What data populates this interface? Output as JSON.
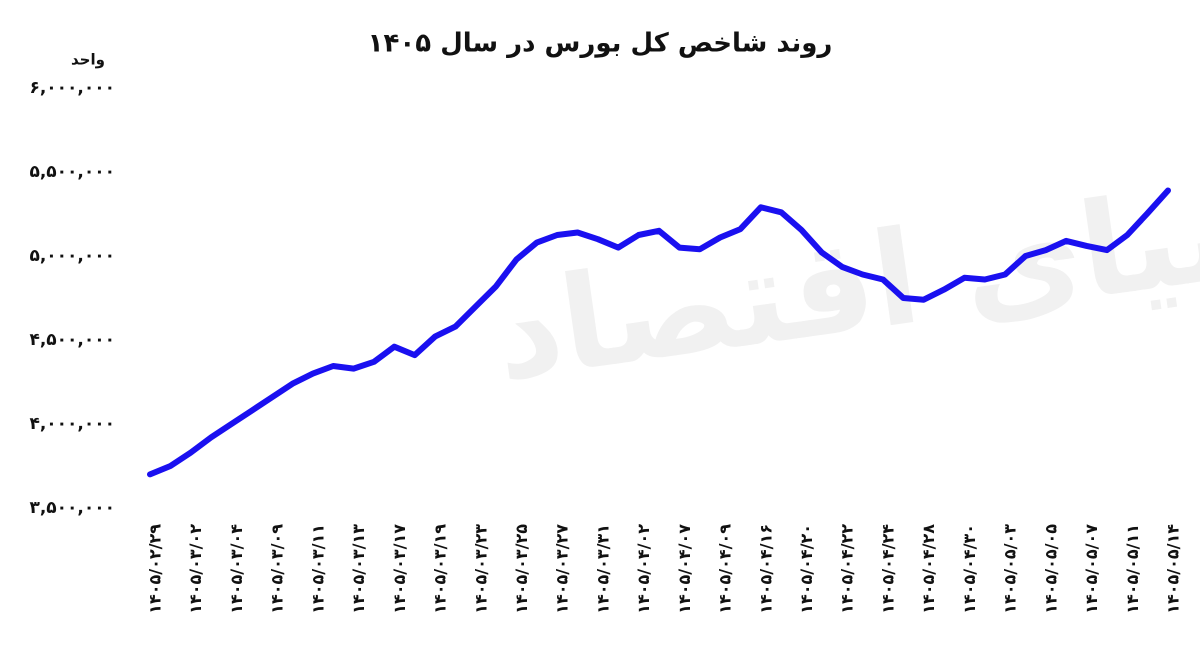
{
  "chart_data": {
    "type": "line",
    "title": "روند شاخص کل بورس در سال ۱۴۰۵",
    "y_label": "واحد",
    "watermark": "دنیای اقتصاد",
    "categories": [
      "۱۴۰۵/۰۲/۲۹",
      null,
      "۱۴۰۵/۰۳/۰۲",
      null,
      "۱۴۰۵/۰۳/۰۴",
      null,
      "۱۴۰۵/۰۳/۰۹",
      null,
      "۱۴۰۵/۰۳/۱۱",
      null,
      "۱۴۰۵/۰۳/۱۳",
      null,
      "۱۴۰۵/۰۳/۱۷",
      null,
      "۱۴۰۵/۰۳/۱۹",
      null,
      "۱۴۰۵/۰۳/۲۳",
      null,
      "۱۴۰۵/۰۳/۲۵",
      null,
      "۱۴۰۵/۰۳/۲۷",
      null,
      "۱۴۰۵/۰۳/۳۱",
      null,
      "۱۴۰۵/۰۴/۰۲",
      null,
      "۱۴۰۵/۰۴/۰۷",
      null,
      "۱۴۰۵/۰۴/۰۹",
      null,
      "۱۴۰۵/۰۴/۱۶",
      null,
      "۱۴۰۵/۰۴/۲۰",
      null,
      "۱۴۰۵/۰۴/۲۲",
      null,
      "۱۴۰۵/۰۴/۲۴",
      null,
      "۱۴۰۵/۰۴/۲۸",
      null,
      "۱۴۰۵/۰۴/۳۰",
      null,
      "۱۴۰۵/۰۵/۰۳",
      null,
      "۱۴۰۵/۰۵/۰۵",
      null,
      "۱۴۰۵/۰۵/۰۷",
      null,
      "۱۴۰۵/۰۵/۱۱",
      null,
      "۱۴۰۵/۰۵/۱۴"
    ],
    "series": [
      {
        "name": "شاخص کل",
        "color": "#1a10f0",
        "values": [
          3700000,
          3750000,
          3830000,
          3920000,
          4000000,
          4080000,
          4160000,
          4240000,
          4300000,
          4345000,
          4330000,
          4370000,
          4460000,
          4410000,
          4520000,
          4580000,
          4700000,
          4820000,
          4980000,
          5080000,
          5125000,
          5140000,
          5100000,
          5050000,
          5125000,
          5150000,
          5050000,
          5040000,
          5110000,
          5160000,
          5290000,
          5260000,
          5155000,
          5020000,
          4935000,
          4890000,
          4860000,
          4750000,
          4740000,
          4800000,
          4870000,
          4860000,
          4890000,
          5000000,
          5035000,
          5090000,
          5060000,
          5035000,
          5125000,
          5255000,
          5390000
        ]
      }
    ],
    "ylim": [
      3500000,
      6000000
    ],
    "yticks": [
      {
        "value": 3500000,
        "label": "۳,۵۰۰,۰۰۰"
      },
      {
        "value": 4000000,
        "label": "۴,۰۰۰,۰۰۰"
      },
      {
        "value": 4500000,
        "label": "۴,۵۰۰,۰۰۰"
      },
      {
        "value": 5000000,
        "label": "۵,۰۰۰,۰۰۰"
      },
      {
        "value": 5500000,
        "label": "۵,۵۰۰,۰۰۰"
      },
      {
        "value": 6000000,
        "label": "۶,۰۰۰,۰۰۰"
      }
    ],
    "grid": false
  }
}
